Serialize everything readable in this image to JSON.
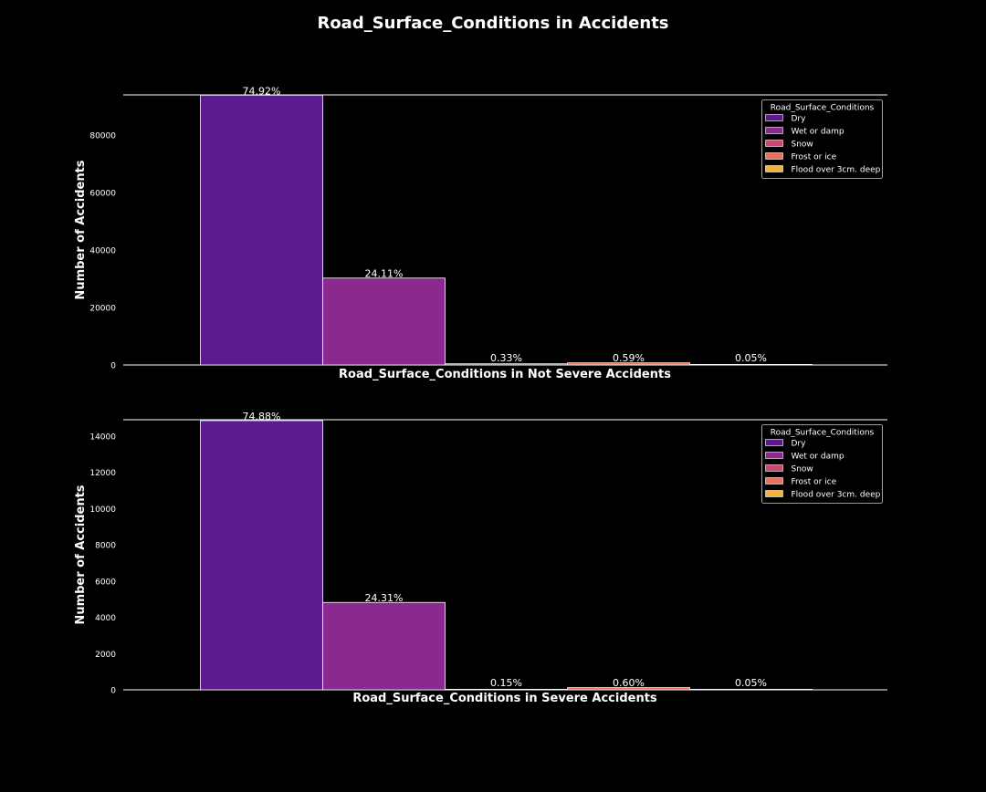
{
  "chart_data": {
    "type": "bar",
    "title": "Road_Surface_Conditions in Accidents",
    "legend_title": "Road_Surface_Conditions",
    "legend_position": "top-right",
    "grid": false,
    "colors": {
      "Dry": "#5b1a8f",
      "Wet or damp": "#8a2a8e",
      "Snow": "#c9486f",
      "Frost or ice": "#e8725b",
      "Flood over 3cm. deep": "#f0b43a",
      "background": "#000000",
      "foreground": "#ffffff"
    },
    "panels": [
      {
        "id": "not-severe",
        "xlabel": "Road_Surface_Conditions in Not Severe Accidents",
        "ylabel": "Number of Accidents",
        "ylim": [
          0,
          94000
        ],
        "yticks": [
          0,
          20000,
          40000,
          60000,
          80000
        ],
        "categories": [
          "Dry",
          "Wet or damp",
          "Snow",
          "Frost or ice",
          "Flood over 3cm. deep"
        ],
        "values": [
          93900,
          30250,
          414,
          740,
          63
        ],
        "labels": [
          "74.92%",
          "24.11%",
          "0.33%",
          "0.59%",
          "0.05%"
        ]
      },
      {
        "id": "severe",
        "xlabel": "Road_Surface_Conditions in Severe Accidents",
        "ylabel": "Number of Accidents",
        "ylim": [
          0,
          14900
        ],
        "yticks": [
          0,
          2000,
          4000,
          6000,
          8000,
          10000,
          12000,
          14000
        ],
        "categories": [
          "Dry",
          "Wet or damp",
          "Snow",
          "Frost or ice",
          "Flood over 3cm. deep"
        ],
        "values": [
          14850,
          4820,
          30,
          119,
          10
        ],
        "labels": [
          "74.88%",
          "24.31%",
          "0.15%",
          "0.60%",
          "0.05%"
        ]
      }
    ]
  }
}
